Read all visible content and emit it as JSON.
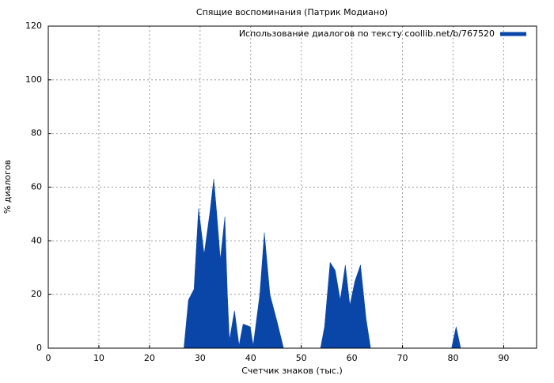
{
  "chart_data": {
    "type": "area",
    "title": "Спящие воспоминания (Патрик Модиано)",
    "x_label": "Счетчик знаков (тыс.)",
    "y_label": "% диалогов",
    "x": [
      26.8,
      27.7,
      28.8,
      29.7,
      30.8,
      31.9,
      32.7,
      33.3,
      34.0,
      34.9,
      35.4,
      35.8,
      36.8,
      37.7,
      38.5,
      39.9,
      40.5,
      41.8,
      42.7,
      43.8,
      45.2,
      46.5,
      53.8,
      54.6,
      55.7,
      56.7,
      57.7,
      58.7,
      59.6,
      60.6,
      61.7,
      62.8,
      63.7,
      79.7,
      80.6,
      81.5
    ],
    "series": [
      {
        "name": "Использование диалогов по тексту coollib.net/b/767520",
        "color": "#0a46a8",
        "values": [
          0,
          18,
          22,
          52,
          35,
          50,
          63,
          50,
          33,
          49,
          20,
          3,
          14,
          1,
          9,
          8,
          1,
          20,
          43,
          20,
          10,
          0,
          0,
          8,
          32,
          29,
          18,
          31,
          16,
          25,
          31,
          11,
          0,
          0,
          8,
          0
        ]
      }
    ],
    "xlim": [
      0,
      96.5
    ],
    "xticks": [
      0,
      10,
      20,
      30,
      40,
      50,
      60,
      70,
      80,
      90
    ],
    "ylim": [
      0,
      120
    ],
    "yticks": [
      0,
      20,
      40,
      60,
      80,
      100,
      120
    ],
    "grid": true,
    "legend": "top-right"
  }
}
